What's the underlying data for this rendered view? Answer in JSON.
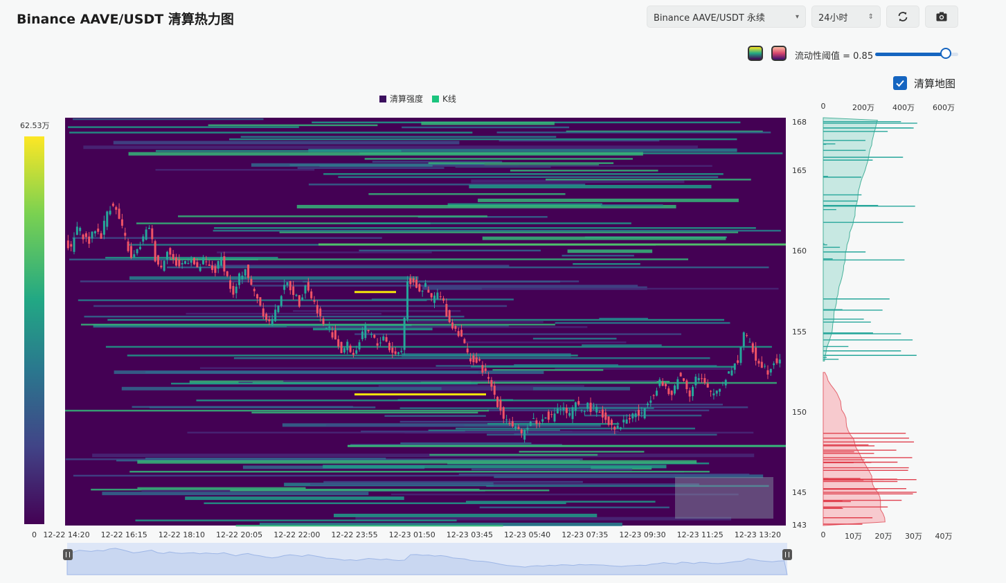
{
  "header": {
    "title": "Binance AAVE/USDT 清算热力图"
  },
  "controls": {
    "symbol_select": "Binance AAVE/USDT 永续",
    "range_select": "24小时",
    "refresh_icon": "refresh-icon",
    "camera_icon": "camera-icon",
    "swatch_viridis": "viridis-swatch",
    "swatch_magma": "magma-swatch",
    "threshold_label": "流动性阈值 = 0.85",
    "threshold_value": 0.85,
    "show_map_label": "清算地图",
    "show_map_checked": true
  },
  "legend": {
    "heat": "清算强度",
    "kline": "K线",
    "heat_color": "#3b0f5e",
    "kline_color": "#1bc47d"
  },
  "colorbar": {
    "max_label": "62.53万",
    "min_label": "0"
  },
  "colors": {
    "background": "#440154",
    "up": "#26a69a",
    "down": "#ef5366",
    "accent": "#1565c0",
    "highlight": "#f5e60a"
  },
  "chart_data": {
    "type": "heatmap",
    "title": "",
    "x_ticks": [
      "12-22 14:20",
      "12-22 16:15",
      "12-22 18:10",
      "12-22 20:05",
      "12-22 22:00",
      "12-22 23:55",
      "12-23 01:50",
      "12-23 03:45",
      "12-23 05:40",
      "12-23 07:35",
      "12-23 09:30",
      "12-23 11:25",
      "12-23 13:20"
    ],
    "y_ticks": [
      "168",
      "165",
      "160",
      "155",
      "150",
      "145",
      "143"
    ],
    "ylim": [
      143,
      168.3
    ],
    "price_path": [
      [
        0,
        160.6
      ],
      [
        2,
        160.1
      ],
      [
        4,
        161.5
      ],
      [
        6,
        161.0
      ],
      [
        8,
        160.6
      ],
      [
        10,
        161.4
      ],
      [
        12,
        161.0
      ],
      [
        14,
        162.5
      ],
      [
        16,
        163.0
      ],
      [
        18,
        162.0
      ],
      [
        20,
        160.8
      ],
      [
        22,
        159.5
      ],
      [
        24,
        160.0
      ],
      [
        26,
        160.8
      ],
      [
        28,
        161.6
      ],
      [
        30,
        159.6
      ],
      [
        32,
        159.0
      ],
      [
        34,
        160.2
      ],
      [
        36,
        159.4
      ],
      [
        38,
        159.1
      ],
      [
        40,
        159.4
      ],
      [
        42,
        159.6
      ],
      [
        44,
        158.8
      ],
      [
        46,
        159.4
      ],
      [
        48,
        159.0
      ],
      [
        50,
        158.8
      ],
      [
        52,
        159.6
      ],
      [
        54,
        158.4
      ],
      [
        56,
        157.2
      ],
      [
        58,
        158.4
      ],
      [
        60,
        159.0
      ],
      [
        62,
        157.8
      ],
      [
        64,
        157.2
      ],
      [
        66,
        156.2
      ],
      [
        68,
        155.6
      ],
      [
        70,
        156.2
      ],
      [
        72,
        157.4
      ],
      [
        74,
        158.0
      ],
      [
        76,
        157.5
      ],
      [
        78,
        156.8
      ],
      [
        80,
        158.0
      ],
      [
        82,
        157.2
      ],
      [
        84,
        156.4
      ],
      [
        86,
        155.4
      ],
      [
        88,
        155.2
      ],
      [
        90,
        154.6
      ],
      [
        92,
        153.8
      ],
      [
        94,
        154.2
      ],
      [
        96,
        153.6
      ],
      [
        98,
        154.4
      ],
      [
        100,
        155.2
      ],
      [
        102,
        154.8
      ],
      [
        104,
        154.2
      ],
      [
        106,
        154.8
      ],
      [
        108,
        154.0
      ],
      [
        110,
        153.6
      ],
      [
        112,
        153.9
      ],
      [
        114,
        158.1
      ],
      [
        116,
        158.2
      ],
      [
        118,
        157.6
      ],
      [
        120,
        157.8
      ],
      [
        122,
        157.0
      ],
      [
        124,
        157.4
      ],
      [
        126,
        156.8
      ],
      [
        128,
        155.6
      ],
      [
        130,
        155.2
      ],
      [
        132,
        154.8
      ],
      [
        134,
        153.6
      ],
      [
        136,
        153.2
      ],
      [
        138,
        153.0
      ],
      [
        140,
        152.4
      ],
      [
        142,
        151.6
      ],
      [
        144,
        150.6
      ],
      [
        146,
        149.8
      ],
      [
        148,
        149.4
      ],
      [
        150,
        149.0
      ],
      [
        152,
        148.5
      ],
      [
        154,
        149.3
      ],
      [
        156,
        149.6
      ],
      [
        158,
        149.3
      ],
      [
        160,
        149.9
      ],
      [
        162,
        149.7
      ],
      [
        164,
        150.3
      ],
      [
        166,
        150.2
      ],
      [
        168,
        149.8
      ],
      [
        170,
        150.5
      ],
      [
        172,
        150.2
      ],
      [
        174,
        150.4
      ],
      [
        176,
        150.2
      ],
      [
        178,
        150.1
      ],
      [
        180,
        149.6
      ],
      [
        182,
        149.3
      ],
      [
        184,
        149.0
      ],
      [
        186,
        149.5
      ],
      [
        188,
        149.7
      ],
      [
        190,
        150.0
      ],
      [
        192,
        149.8
      ],
      [
        194,
        150.8
      ],
      [
        196,
        151.2
      ],
      [
        198,
        152.0
      ],
      [
        200,
        151.4
      ],
      [
        202,
        151.0
      ],
      [
        204,
        152.3
      ],
      [
        206,
        152.0
      ],
      [
        208,
        151.2
      ],
      [
        210,
        152.2
      ],
      [
        212,
        152.0
      ],
      [
        214,
        151.4
      ],
      [
        216,
        151.2
      ],
      [
        218,
        151.6
      ],
      [
        220,
        152.2
      ],
      [
        222,
        152.8
      ],
      [
        224,
        153.2
      ],
      [
        226,
        155.0
      ],
      [
        228,
        154.2
      ],
      [
        230,
        153.4
      ],
      [
        232,
        153.0
      ],
      [
        234,
        152.6
      ],
      [
        236,
        153.2
      ],
      [
        238,
        153.4
      ]
    ],
    "price_n": 240,
    "right_top_ticks": [
      "0",
      "200万",
      "400万",
      "600万"
    ],
    "right_top_max": 600,
    "right_bottom_ticks": [
      "0",
      "10万",
      "20万",
      "30万",
      "40万"
    ],
    "right_bottom_max": 40
  },
  "slider_panel": {
    "left_handle": "range-start-handle",
    "right_handle": "range-end-handle"
  }
}
